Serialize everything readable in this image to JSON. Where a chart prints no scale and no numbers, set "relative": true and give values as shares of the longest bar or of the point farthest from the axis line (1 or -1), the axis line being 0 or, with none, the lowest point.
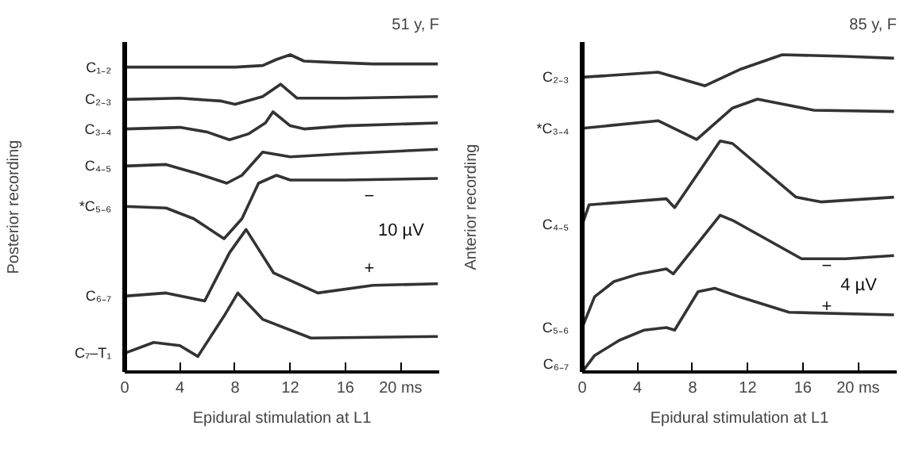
{
  "chart_data": [
    {
      "type": "line",
      "title": "51 y, F",
      "ylabel": "Posterior recording",
      "xlabel": "Epidural stimulation at L1",
      "relative": true,
      "grid": false,
      "xlim": [
        0,
        22.8
      ],
      "xticks": [
        0,
        4,
        8,
        12,
        16,
        {
          "value": 20,
          "label": "20 ms"
        }
      ],
      "series": [
        {
          "name": "C₁₋₂",
          "color": "#333333",
          "x": [
            0,
            4,
            8,
            10,
            11,
            12,
            13,
            15,
            18,
            22.7
          ],
          "values": [
            0.961,
            0.961,
            0.961,
            0.966,
            0.985,
            1.0,
            0.98,
            0.976,
            0.971,
            0.971
          ]
        },
        {
          "name": "C₂₋₃",
          "color": "#333333",
          "x": [
            0,
            4,
            7,
            8,
            10,
            11.3,
            12.5,
            16,
            22.7
          ],
          "values": [
            0.859,
            0.863,
            0.854,
            0.844,
            0.868,
            0.907,
            0.863,
            0.863,
            0.868
          ]
        },
        {
          "name": "C₃₋₄",
          "color": "#333333",
          "x": [
            0,
            4,
            6,
            7.6,
            9,
            10.2,
            10.75,
            12,
            13,
            16,
            22.7
          ],
          "values": [
            0.766,
            0.771,
            0.756,
            0.732,
            0.751,
            0.785,
            0.82,
            0.776,
            0.766,
            0.776,
            0.785
          ]
        },
        {
          "name": "C₄₋₅",
          "color": "#333333",
          "x": [
            0,
            3,
            5,
            7.4,
            8.5,
            10,
            12,
            16,
            22.7
          ],
          "values": [
            0.649,
            0.654,
            0.629,
            0.595,
            0.62,
            0.693,
            0.678,
            0.688,
            0.702
          ]
        },
        {
          "name": "*C₅₋₆",
          "color": "#333333",
          "x": [
            0,
            3,
            5,
            6.2,
            7.2,
            8.5,
            9.7,
            11,
            12,
            16,
            22.7
          ],
          "values": [
            0.522,
            0.517,
            0.483,
            0.449,
            0.42,
            0.483,
            0.595,
            0.62,
            0.605,
            0.605,
            0.61
          ]
        },
        {
          "name": "C₆₋₇",
          "color": "#333333",
          "x": [
            0,
            3,
            5.8,
            7.6,
            8.8,
            10.8,
            14,
            18,
            22.7
          ],
          "values": [
            0.239,
            0.249,
            0.224,
            0.376,
            0.449,
            0.312,
            0.249,
            0.273,
            0.278
          ]
        },
        {
          "name": "C₇–T₁",
          "color": "#333333",
          "x": [
            0,
            2.1,
            4,
            5.3,
            7.2,
            8.2,
            10,
            13.5,
            22.7
          ],
          "values": [
            0.059,
            0.093,
            0.083,
            0.049,
            0.176,
            0.249,
            0.166,
            0.107,
            0.112
          ]
        }
      ],
      "annotations": [
        "10 µV",
        "−",
        "+"
      ]
    },
    {
      "type": "line",
      "title": "85 y, F",
      "ylabel": "Anterior recording",
      "xlabel": "Epidural stimulation at L1",
      "relative": true,
      "grid": false,
      "xlim": [
        0,
        22.8
      ],
      "xticks": [
        0,
        4,
        8,
        12,
        16,
        {
          "value": 20,
          "label": "20 ms"
        }
      ],
      "series": [
        {
          "name": "C₂₋₃",
          "color": "#333333",
          "x": [
            0,
            5.5,
            8.9,
            11.4,
            14.5,
            19,
            22.6
          ],
          "values": [
            0.929,
            0.945,
            0.902,
            0.953,
            1.0,
            0.995,
            0.989
          ]
        },
        {
          "name": "*C₃₋₄",
          "color": "#333333",
          "x": [
            0,
            5.5,
            8.3,
            10.9,
            12.7,
            16.8,
            22.6
          ],
          "values": [
            0.768,
            0.792,
            0.733,
            0.832,
            0.86,
            0.825,
            0.821
          ]
        },
        {
          "name": "C₄₋₅",
          "color": "#333333",
          "x": [
            0,
            0.5,
            3.2,
            6.1,
            6.7,
            10,
            10.9,
            15.5,
            17.3,
            22.6
          ],
          "values": [
            0.464,
            0.527,
            0.536,
            0.546,
            0.518,
            0.728,
            0.72,
            0.551,
            0.536,
            0.551
          ]
        },
        {
          "name": "C₅₋₆",
          "color": "#333333",
          "x": [
            0,
            0.9,
            2.3,
            4.1,
            6.1,
            6.6,
            10,
            10.9,
            15.9,
            19.1,
            22.6
          ],
          "values": [
            0.14,
            0.237,
            0.285,
            0.309,
            0.325,
            0.309,
            0.494,
            0.478,
            0.357,
            0.357,
            0.367
          ]
        },
        {
          "name": "C₆₋₇",
          "color": "#333333",
          "x": [
            0,
            0.9,
            2.7,
            4.5,
            6.1,
            6.7,
            8.4,
            9.6,
            11.4,
            15,
            22.6
          ],
          "values": [
            0.0,
            0.052,
            0.1,
            0.132,
            0.14,
            0.132,
            0.253,
            0.264,
            0.237,
            0.188,
            0.18
          ]
        }
      ],
      "annotations": [
        "4 µV",
        "−",
        "+"
      ]
    }
  ]
}
